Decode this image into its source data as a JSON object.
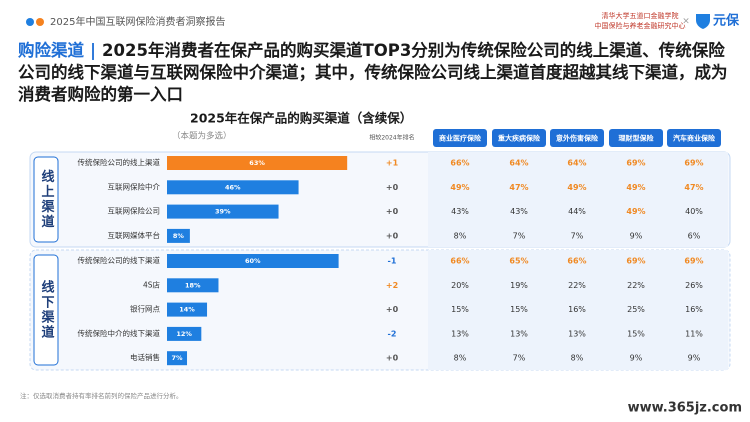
{
  "header": {
    "report_title": "2025年中国互联网保险消费者洞察报告",
    "org_line1": "清华大学五道口金融学院",
    "org_line2": "中国保险与养老金融研究中心",
    "separator": "×",
    "brand": "元保"
  },
  "headline": {
    "topic": "购险渠道",
    "divider": "|",
    "text": "2025年消费者在保产品的购买渠道TOP3分别为传统保险公司的线上渠道、传统保险公司的线下渠道与互联网保险中介渠道；其中，传统保险公司线上渠道首度超越其线下渠道，成为消费者购险的第一入口"
  },
  "chart_data": {
    "type": "bar",
    "orientation": "horizontal",
    "title": "2025年在保产品的购买渠道（含续保）",
    "subtitle": "（本题为多选）",
    "xlim": [
      0,
      100
    ],
    "rank_change_header": "相较2024年排名",
    "columns": [
      "商业医疗保险",
      "重大疾病保险",
      "意外伤害保险",
      "理财型保险",
      "汽车商业保险"
    ],
    "highlight_color": "#f08a24",
    "groups": [
      {
        "label": "线上渠道",
        "categories": [
          "传统保险公司的线上渠道",
          "互联网保险中介",
          "互联网保险公司",
          "互联网媒体平台"
        ],
        "values": [
          63,
          46,
          39,
          8
        ],
        "value_labels": [
          "63%",
          "46%",
          "39%",
          "8%"
        ],
        "colors": [
          "#f5821f",
          "#1f7fe0",
          "#1f7fe0",
          "#1f7fe0"
        ],
        "rank_change": [
          "+1",
          "+0",
          "+0",
          "+0"
        ],
        "table": [
          [
            "66%",
            "64%",
            "64%",
            "69%",
            "69%"
          ],
          [
            "49%",
            "47%",
            "49%",
            "49%",
            "47%"
          ],
          [
            "43%",
            "43%",
            "44%",
            "49%",
            "40%"
          ],
          [
            "8%",
            "7%",
            "7%",
            "9%",
            "6%"
          ]
        ],
        "table_highlight": [
          [
            true,
            true,
            true,
            true,
            true
          ],
          [
            true,
            true,
            true,
            true,
            true
          ],
          [
            false,
            false,
            false,
            true,
            false
          ],
          [
            false,
            false,
            false,
            false,
            false
          ]
        ]
      },
      {
        "label": "线下渠道",
        "categories": [
          "传统保险公司的线下渠道",
          "4S店",
          "银行网点",
          "传统保险中介的线下渠道",
          "电话销售"
        ],
        "values": [
          60,
          18,
          14,
          12,
          7
        ],
        "value_labels": [
          "60%",
          "18%",
          "14%",
          "12%",
          "7%"
        ],
        "colors": [
          "#1f7fe0",
          "#1f7fe0",
          "#1f7fe0",
          "#1f7fe0",
          "#1f7fe0"
        ],
        "rank_change": [
          "-1",
          "+2",
          "+0",
          "-2",
          "+0"
        ],
        "table": [
          [
            "66%",
            "65%",
            "66%",
            "69%",
            "69%"
          ],
          [
            "20%",
            "19%",
            "22%",
            "22%",
            "26%"
          ],
          [
            "15%",
            "15%",
            "16%",
            "25%",
            "16%"
          ],
          [
            "13%",
            "13%",
            "13%",
            "15%",
            "11%"
          ],
          [
            "8%",
            "7%",
            "8%",
            "9%",
            "9%"
          ]
        ],
        "table_highlight": [
          [
            true,
            true,
            true,
            true,
            true
          ],
          [
            false,
            false,
            false,
            false,
            false
          ],
          [
            false,
            false,
            false,
            false,
            false
          ],
          [
            false,
            false,
            false,
            false,
            false
          ],
          [
            false,
            false,
            false,
            false,
            false
          ]
        ]
      }
    ]
  },
  "footnote": "注：仅选取消费者持有率排名前列的保险产品进行分析。",
  "watermark": "www.365jz.com"
}
